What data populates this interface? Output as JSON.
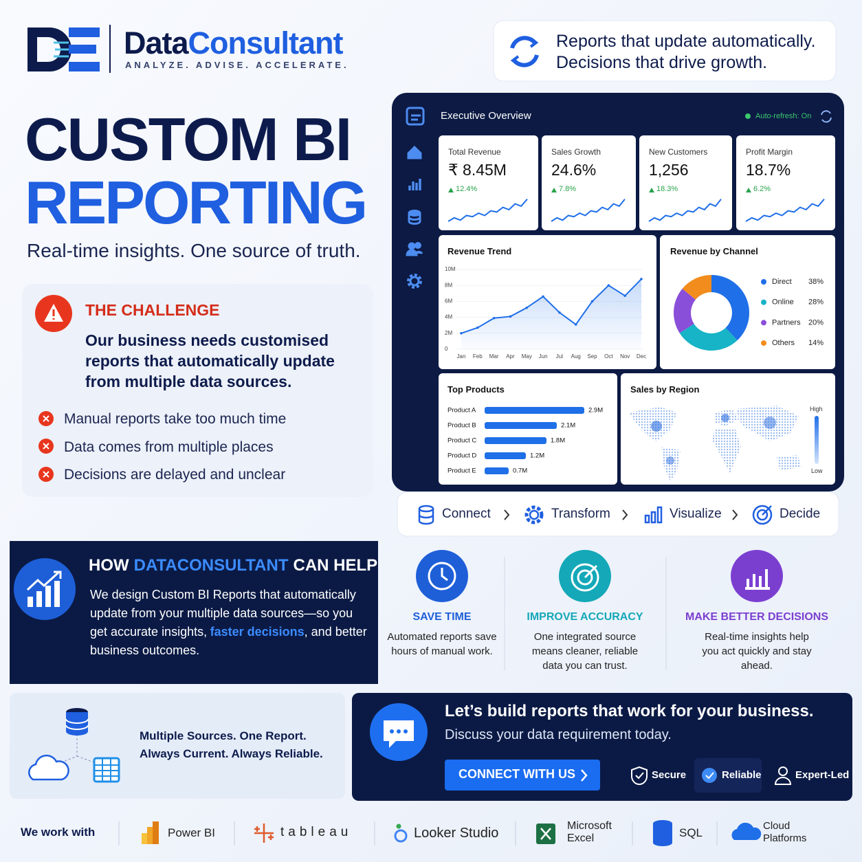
{
  "brand": {
    "name_1": "Data",
    "name_2": "Consultant",
    "tagline": "ANALYZE. ADVISE. ACCELERATE."
  },
  "banner": {
    "line1": "Reports that update automatically.",
    "line2": "Decisions that drive growth."
  },
  "hero": {
    "title_1": "CUSTOM BI",
    "title_2": "REPORTING",
    "subtitle": "Real-time insights. One source of truth."
  },
  "challenge": {
    "heading": "THE CHALLENGE",
    "statement": "Our business needs customised reports that automatically update from multiple data sources.",
    "points": [
      "Manual reports take too much time",
      "Data comes from multiple places",
      "Decisions are delayed and unclear"
    ]
  },
  "dashboard": {
    "title": "Executive Overview",
    "refresh": "Auto-refresh: On",
    "kpis": [
      {
        "label": "Total Revenue",
        "value": "₹ 8.45M",
        "change": "12.4%"
      },
      {
        "label": "Sales Growth",
        "value": "24.6%",
        "change": "7.8%"
      },
      {
        "label": "New Customers",
        "value": "1,256",
        "change": "18.3%"
      },
      {
        "label": "Profit Margin",
        "value": "18.7%",
        "change": "6.2%"
      }
    ],
    "region": {
      "title": "Sales by Region",
      "high": "High",
      "low": "Low"
    }
  },
  "chart_data": [
    {
      "type": "line",
      "title": "Revenue Trend",
      "categories": [
        "Jan",
        "Feb",
        "Mar",
        "Apr",
        "May",
        "Jun",
        "Jul",
        "Aug",
        "Sep",
        "Oct",
        "Nov",
        "Dec"
      ],
      "values": [
        2000000,
        2700000,
        3900000,
        4100000,
        5200000,
        6600000,
        4600000,
        3100000,
        6000000,
        8000000,
        6700000,
        8800000
      ],
      "color": "#1f6fe8",
      "ylim": [
        0,
        10000000
      ],
      "yticks": [
        0,
        {
          "value": 2000000,
          "label": "2M"
        },
        {
          "value": 4000000,
          "label": "4M"
        },
        {
          "value": 6000000,
          "label": "6M"
        },
        {
          "value": 8000000,
          "label": "8M"
        },
        {
          "value": 10000000,
          "label": "10M"
        }
      ],
      "grid": true
    },
    {
      "type": "pie",
      "title": "Revenue by Channel",
      "categories": [
        "Direct",
        "Online",
        "Partners",
        "Others"
      ],
      "values": [
        38,
        28,
        20,
        14
      ],
      "value_labels": [
        "38%",
        "28%",
        "20%",
        "14%"
      ],
      "colors": [
        "#1f6fe8",
        "#17b3c6",
        "#8a4fd8",
        "#f28c1c"
      ]
    },
    {
      "type": "bar",
      "title": "Top Products",
      "categories": [
        "Product A",
        "Product B",
        "Product C",
        "Product D",
        "Product E"
      ],
      "values": [
        2900000,
        2100000,
        1800000,
        1200000,
        700000
      ],
      "value_labels": [
        "2.9M",
        "2.1M",
        "1.8M",
        "1.2M",
        "0.7M"
      ],
      "color": "#1f6fe8",
      "xlim": [
        0,
        3000000
      ]
    }
  ],
  "pipeline": {
    "steps": [
      "Connect",
      "Transform",
      "Visualize",
      "Decide"
    ]
  },
  "help": {
    "heading_1": "HOW",
    "heading_brand": "DATACONSULTANT",
    "heading_2": "CAN HELP",
    "body_1": "We design Custom BI Reports that automatically update from your multiple data sources—so you get accurate insights,",
    "body_highlight": "faster decisions",
    "body_2": ", and better business outcomes."
  },
  "benefits": [
    {
      "title": "SAVE TIME",
      "text": "Automated reports save hours of manual work."
    },
    {
      "title": "IMPROVE ACCURACY",
      "text": "One integrated source means cleaner, reliable data you can trust."
    },
    {
      "title": "MAKE BETTER DECISIONS",
      "text": "Real-time insights help you act quickly and stay ahead."
    }
  ],
  "sources": {
    "text_1": "Multiple Sources. One Report.",
    "text_2": "Always Current. Always Reliable."
  },
  "cta": {
    "heading": "Let’s build reports that work for your business.",
    "subheading": "Discuss your data requirement today.",
    "button": "CONNECT WITH US",
    "badges": [
      "Secure",
      "Reliable",
      "Expert-Led"
    ]
  },
  "partners": {
    "label": "We work with",
    "items": [
      "Power BI",
      "tableau",
      "Looker Studio",
      "Microsoft Excel",
      "SQL",
      "Cloud Platforms"
    ]
  }
}
